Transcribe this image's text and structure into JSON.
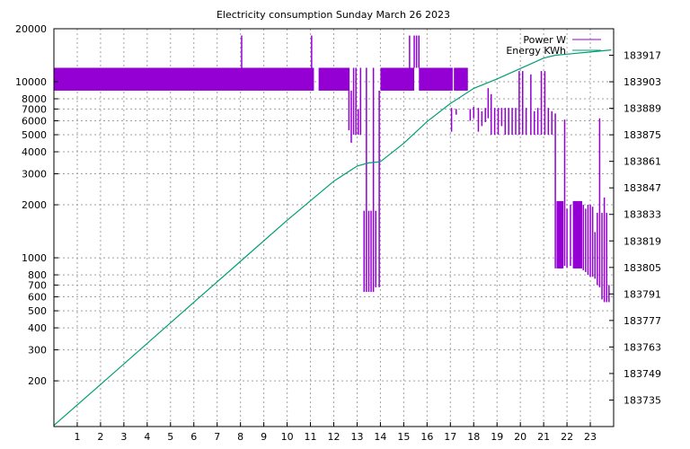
{
  "chart_data": {
    "type": "line",
    "title": "Electricity consumption Sunday March 26 2023",
    "x_ticks": [
      "1",
      "2",
      "3",
      "4",
      "5",
      "6",
      "7",
      "8",
      "9",
      "10",
      "11",
      "12",
      "13",
      "14",
      "15",
      "16",
      "17",
      "18",
      "19",
      "20",
      "21",
      "22",
      "23"
    ],
    "xlim": [
      0,
      24
    ],
    "y_left": {
      "scale": "log",
      "ylim": [
        110,
        20000
      ],
      "ticks": [
        200,
        300,
        400,
        500,
        600,
        700,
        800,
        1000,
        2000,
        3000,
        4000,
        5000,
        6000,
        7000,
        8000,
        10000,
        20000
      ],
      "tick_labels": [
        "200",
        "300",
        "400",
        "500",
        "600",
        "700",
        "800",
        "1000",
        "2000",
        "3000",
        "4000",
        "5000",
        "6000",
        "7000",
        "8000",
        "10000",
        "20000"
      ]
    },
    "y_right": {
      "scale": "linear",
      "ylim": [
        183721,
        183931
      ],
      "ticks": [
        183735,
        183749,
        183763,
        183777,
        183791,
        183805,
        183819,
        183833,
        183847,
        183861,
        183875,
        183889,
        183903,
        183917
      ],
      "tick_labels": [
        "183735",
        "183749",
        "183763",
        "183777",
        "183791",
        "183805",
        "183819",
        "183833",
        "183847",
        "183861",
        "183875",
        "183889",
        "183903",
        "183917"
      ]
    },
    "legend": "top-right",
    "grid": true,
    "series": [
      {
        "name": "Power W",
        "axis": "left",
        "color": "#9400d3",
        "blocks": [
          {
            "x0": 0.0,
            "x1": 11.15,
            "low": 8900,
            "high": 12000
          },
          {
            "x0": 11.35,
            "x1": 12.65,
            "low": 8900,
            "high": 12000
          },
          {
            "x0": 14.0,
            "x1": 15.45,
            "low": 8900,
            "high": 12000
          },
          {
            "x0": 15.65,
            "x1": 17.1,
            "low": 8900,
            "high": 12000
          },
          {
            "x0": 17.15,
            "x1": 17.75,
            "low": 8900,
            "high": 12000
          },
          {
            "x0": 21.55,
            "x1": 21.85,
            "low": 870,
            "high": 2100
          },
          {
            "x0": 22.25,
            "x1": 22.65,
            "low": 870,
            "high": 2100
          }
        ],
        "spikes": [
          {
            "x": 8.05,
            "low": 8900,
            "high": 18300
          },
          {
            "x": 11.05,
            "low": 8900,
            "high": 18300
          },
          {
            "x": 15.25,
            "low": 8900,
            "high": 18300
          },
          {
            "x": 15.45,
            "low": 12000,
            "high": 18300
          },
          {
            "x": 15.55,
            "low": 12000,
            "high": 18300
          },
          {
            "x": 15.65,
            "low": 12000,
            "high": 18300
          },
          {
            "x": 12.65,
            "low": 5300,
            "high": 12000
          },
          {
            "x": 12.75,
            "low": 4500,
            "high": 8900
          },
          {
            "x": 12.85,
            "low": 5000,
            "high": 12000
          },
          {
            "x": 12.95,
            "low": 5000,
            "high": 12000
          },
          {
            "x": 13.05,
            "low": 5000,
            "high": 7000
          },
          {
            "x": 13.15,
            "low": 5000,
            "high": 12000
          },
          {
            "x": 13.3,
            "low": 640,
            "high": 1850
          },
          {
            "x": 13.4,
            "low": 640,
            "high": 12000
          },
          {
            "x": 13.5,
            "low": 640,
            "high": 1850
          },
          {
            "x": 13.6,
            "low": 640,
            "high": 1850
          },
          {
            "x": 13.7,
            "low": 640,
            "high": 12000
          },
          {
            "x": 13.8,
            "low": 680,
            "high": 1850
          },
          {
            "x": 13.95,
            "low": 680,
            "high": 8900
          },
          {
            "x": 17.05,
            "low": 5200,
            "high": 7100
          },
          {
            "x": 17.25,
            "low": 6500,
            "high": 7000
          },
          {
            "x": 17.85,
            "low": 6000,
            "high": 7000
          },
          {
            "x": 18.0,
            "low": 6200,
            "high": 7200
          },
          {
            "x": 18.2,
            "low": 5200,
            "high": 7100
          },
          {
            "x": 18.35,
            "low": 5600,
            "high": 6800
          },
          {
            "x": 18.5,
            "low": 5900,
            "high": 7100
          },
          {
            "x": 18.62,
            "low": 6200,
            "high": 9200
          },
          {
            "x": 18.75,
            "low": 5000,
            "high": 8500
          },
          {
            "x": 18.9,
            "low": 5000,
            "high": 7100
          },
          {
            "x": 19.05,
            "low": 5000,
            "high": 7100
          },
          {
            "x": 19.2,
            "low": 5600,
            "high": 7100
          },
          {
            "x": 19.35,
            "low": 5000,
            "high": 7100
          },
          {
            "x": 19.5,
            "low": 5000,
            "high": 7100
          },
          {
            "x": 19.65,
            "low": 5000,
            "high": 7100
          },
          {
            "x": 19.8,
            "low": 5000,
            "high": 7100
          },
          {
            "x": 19.95,
            "low": 5000,
            "high": 11500
          },
          {
            "x": 20.1,
            "low": 5000,
            "high": 11500
          },
          {
            "x": 20.25,
            "low": 5000,
            "high": 7100
          },
          {
            "x": 20.45,
            "low": 5000,
            "high": 11000
          },
          {
            "x": 20.6,
            "low": 5000,
            "high": 6800
          },
          {
            "x": 20.75,
            "low": 5000,
            "high": 7100
          },
          {
            "x": 20.9,
            "low": 5000,
            "high": 11500
          },
          {
            "x": 21.05,
            "low": 5000,
            "high": 11500
          },
          {
            "x": 21.2,
            "low": 5000,
            "high": 7100
          },
          {
            "x": 21.35,
            "low": 5000,
            "high": 6800
          },
          {
            "x": 21.5,
            "low": 870,
            "high": 6600
          },
          {
            "x": 21.9,
            "low": 900,
            "high": 6100
          },
          {
            "x": 22.0,
            "low": 880,
            "high": 1900
          },
          {
            "x": 22.15,
            "low": 900,
            "high": 2000
          },
          {
            "x": 22.7,
            "low": 850,
            "high": 2000
          },
          {
            "x": 22.8,
            "low": 830,
            "high": 1900
          },
          {
            "x": 22.9,
            "low": 800,
            "high": 2000
          },
          {
            "x": 23.0,
            "low": 780,
            "high": 2000
          },
          {
            "x": 23.1,
            "low": 780,
            "high": 1950
          },
          {
            "x": 23.2,
            "low": 760,
            "high": 1400
          },
          {
            "x": 23.3,
            "low": 700,
            "high": 1800
          },
          {
            "x": 23.4,
            "low": 680,
            "high": 6200
          },
          {
            "x": 23.5,
            "low": 580,
            "high": 1800
          },
          {
            "x": 23.6,
            "low": 560,
            "high": 2200
          },
          {
            "x": 23.7,
            "low": 560,
            "high": 1800
          },
          {
            "x": 23.8,
            "low": 560,
            "high": 700
          }
        ]
      },
      {
        "name": "Energy KWh",
        "axis": "right",
        "color": "#009e73",
        "x": [
          0,
          2,
          4,
          6,
          8,
          10,
          12,
          13,
          13.5,
          14,
          15,
          16,
          17,
          18,
          19,
          20,
          21,
          21.5,
          22,
          23,
          23.9
        ],
        "y": [
          183721.6,
          183743.2,
          183764.9,
          183786.6,
          183808.2,
          183829.9,
          183850.5,
          183858.5,
          183860.2,
          183860.8,
          183870.5,
          183882.0,
          183891.5,
          183899.5,
          183904.5,
          183910.0,
          183915.5,
          183917.0,
          183917.6,
          183918.7,
          183919.8
        ]
      }
    ]
  }
}
